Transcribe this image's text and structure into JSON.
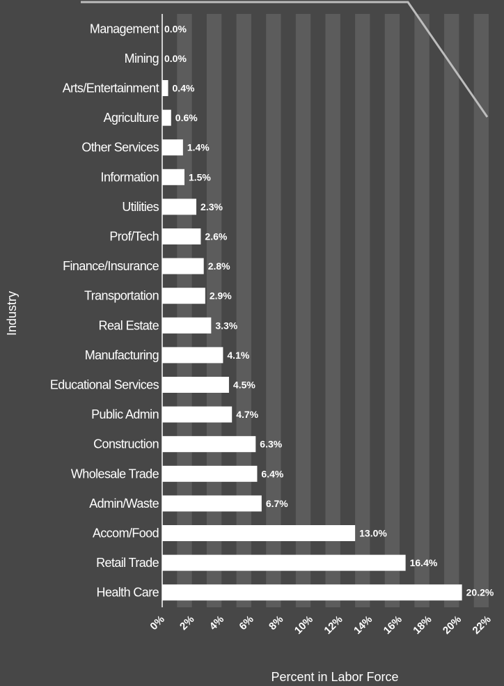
{
  "chart_data": {
    "type": "bar",
    "orientation": "horizontal",
    "xlabel": "Percent in Labor Force",
    "ylabel": "Industry",
    "xlim": [
      0,
      22
    ],
    "xticks": [
      0,
      2,
      4,
      6,
      8,
      10,
      12,
      14,
      16,
      18,
      20,
      22
    ],
    "xtick_labels": [
      "0%",
      "2%",
      "4%",
      "6%",
      "8%",
      "10%",
      "12%",
      "14%",
      "16%",
      "18%",
      "20%",
      "22%"
    ],
    "categories": [
      "Management",
      "Mining",
      "Arts/Entertainment",
      "Agriculture",
      "Other Services",
      "Information",
      "Utilities",
      "Prof/Tech",
      "Finance/Insurance",
      "Transportation",
      "Real Estate",
      "Manufacturing",
      "Educational Services",
      "Public Admin",
      "Construction",
      "Wholesale Trade",
      "Admin/Waste",
      "Accom/Food",
      "Retail Trade",
      "Health Care"
    ],
    "values": [
      0.0,
      0.0,
      0.4,
      0.6,
      1.4,
      1.5,
      2.3,
      2.6,
      2.8,
      2.9,
      3.3,
      4.1,
      4.5,
      4.7,
      6.3,
      6.4,
      6.7,
      13.0,
      16.4,
      20.2
    ],
    "value_labels": [
      "0.0%",
      "0.0%",
      "0.4%",
      "0.6%",
      "1.4%",
      "1.5%",
      "2.3%",
      "2.6%",
      "2.8%",
      "2.9%",
      "3.3%",
      "4.1%",
      "4.5%",
      "4.7%",
      "6.3%",
      "6.4%",
      "6.7%",
      "13.0%",
      "16.4%",
      "20.2%"
    ],
    "grid": "alternating vertical bands",
    "colors": {
      "background": "#474747",
      "band": "#5c5c5c",
      "bar": "#ffffff",
      "text": "#ffffff"
    }
  }
}
